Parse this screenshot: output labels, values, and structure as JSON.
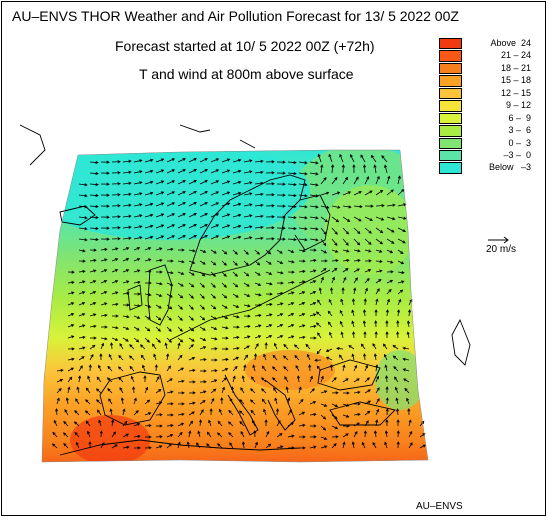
{
  "header": {
    "title": "AU–ENVS THOR Weather and Air Pollution Forecast for 13/ 5 2022  00Z",
    "forecast_start": "Forecast started at 10/ 5 2022  00Z (+72h)",
    "field": "T and wind at 800m above surface"
  },
  "legend": {
    "items": [
      {
        "label": "Above  24",
        "color": "#f23a10"
      },
      {
        "label": "21 – 24",
        "color": "#f65a16"
      },
      {
        "label": "18 – 21",
        "color": "#f8801c"
      },
      {
        "label": "15 – 18",
        "color": "#fba226"
      },
      {
        "label": "12 – 15",
        "color": "#fcc43a"
      },
      {
        "label": "9 – 12",
        "color": "#f6e43a"
      },
      {
        "label": "6 –  9",
        "color": "#d9f23a"
      },
      {
        "label": "3 –  6",
        "color": "#a8ec44"
      },
      {
        "label": "0 –  3",
        "color": "#7fe472"
      },
      {
        "label": "–3 –  0",
        "color": "#5ce4a8"
      },
      {
        "label": "Below   –3",
        "color": "#2ee6d6"
      }
    ]
  },
  "wind_scale": {
    "label": "20 m/s"
  },
  "credit": "AU–ENVS",
  "map": {
    "description_colors": {
      "cold": "#2ee6d6",
      "cool": "#5ce4a8",
      "mild": "#a8ec44",
      "warm": "#f6e43a",
      "hot": "#f8801c",
      "very_hot": "#f23a10"
    }
  }
}
